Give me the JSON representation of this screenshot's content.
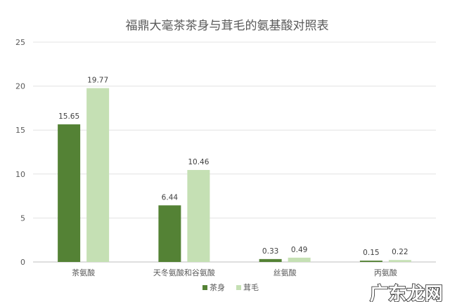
{
  "chart_data": {
    "type": "bar",
    "title": "福鼎大毫茶茶身与茸毛的氨基酸对照表",
    "categories": [
      "茶氨酸",
      "天冬氨酸和谷氨酸",
      "丝氨酸",
      "丙氨酸"
    ],
    "series": [
      {
        "name": "茶身",
        "values": [
          15.65,
          6.44,
          0.33,
          0.15
        ],
        "labels": [
          "15.65",
          "6.44",
          "0.33",
          "0.15"
        ],
        "color": "#548235"
      },
      {
        "name": "茸毛",
        "values": [
          19.77,
          10.46,
          0.49,
          0.22
        ],
        "labels": [
          "19.77",
          "10.46",
          "0.49",
          "0.22"
        ],
        "color": "#c5e0b4"
      }
    ],
    "ylim": [
      0,
      25
    ],
    "yticks": [
      "0",
      "5",
      "10",
      "15",
      "20",
      "25"
    ],
    "grid": true,
    "legend": "bottom",
    "xlabel": "",
    "ylabel": ""
  },
  "watermark": "广东龙网"
}
